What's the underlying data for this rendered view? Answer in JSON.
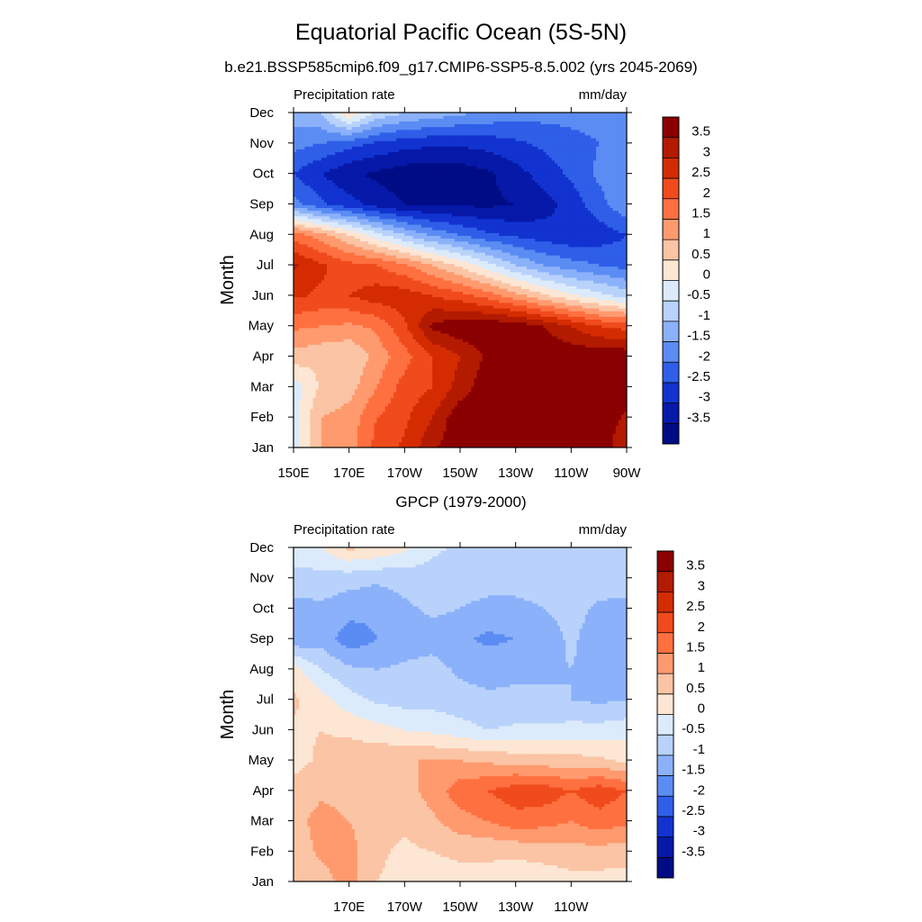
{
  "figure": {
    "title": "Equatorial Pacific Ocean (5S-5N)",
    "subtitle": "b.e21.BSSP585cmip6.f09_g17.CMIP6-SSP5-8.5.002 (yrs 2045-2069)",
    "panel2_title": "GPCP (1979-2000)"
  },
  "colorbar": {
    "levels": [
      "3.5",
      "3",
      "2.5",
      "2",
      "1.5",
      "1",
      "0.5",
      "0",
      "-0.5",
      "-1",
      "-1.5",
      "-2",
      "-2.5",
      "-3",
      "-3.5"
    ],
    "colors": [
      "#8b0000",
      "#b31b00",
      "#d42c00",
      "#f04b1d",
      "#ff7040",
      "#ff9a6e",
      "#fbc4a4",
      "#fde6d4",
      "#dcebfb",
      "#b8d2fb",
      "#8bb1fa",
      "#5b8cf3",
      "#2f5fe8",
      "#1233d0",
      "#0619a8",
      "#000c85"
    ]
  },
  "chart_data": [
    {
      "type": "heatmap",
      "title": "b.e21.BSSP585cmip6.f09_g17.CMIP6-SSP5-8.5.002 (yrs 2045-2069)",
      "left_label": "Precipitation rate",
      "right_label": "mm/day",
      "xlabel": "",
      "ylabel": "Month",
      "xticks": [
        "150E",
        "170E",
        "170W",
        "150W",
        "130W",
        "110W",
        "90W"
      ],
      "yticks": [
        "Jan",
        "Feb",
        "Mar",
        "Apr",
        "May",
        "Jun",
        "Jul",
        "Aug",
        "Sep",
        "Oct",
        "Nov",
        "Dec"
      ],
      "xlim": [
        150,
        270
      ],
      "x": [
        150,
        160,
        170,
        180,
        190,
        200,
        210,
        220,
        230,
        240,
        250,
        260,
        270
      ],
      "values": [
        [
          -0.2,
          1.0,
          1.2,
          2.2,
          2.6,
          3.4,
          3.9,
          3.9,
          3.9,
          3.9,
          3.9,
          3.9,
          3.0
        ],
        [
          -0.2,
          1.0,
          1.2,
          2.0,
          2.4,
          3.0,
          3.9,
          3.9,
          3.9,
          3.9,
          3.9,
          3.9,
          3.4
        ],
        [
          -0.3,
          0.6,
          0.8,
          1.5,
          2.2,
          2.5,
          3.2,
          3.9,
          3.9,
          3.9,
          3.9,
          3.9,
          3.9
        ],
        [
          0.8,
          0.6,
          0.5,
          1.2,
          1.8,
          2.5,
          3.0,
          3.6,
          3.9,
          3.9,
          3.9,
          3.9,
          3.9
        ],
        [
          1.6,
          1.5,
          1.4,
          1.6,
          2.4,
          3.6,
          3.9,
          3.9,
          3.9,
          3.5,
          3.0,
          2.5,
          2.3
        ],
        [
          2.6,
          2.4,
          2.5,
          2.8,
          2.8,
          2.5,
          2.2,
          1.8,
          1.2,
          0.6,
          0.1,
          -0.3,
          -0.7
        ],
        [
          3.1,
          2.6,
          2.2,
          2.0,
          1.6,
          1.0,
          0.4,
          -0.3,
          -1.0,
          -1.5,
          -1.8,
          -2.0,
          -2.2
        ],
        [
          1.8,
          1.2,
          0.5,
          -0.3,
          -1.0,
          -1.6,
          -2.0,
          -2.4,
          -2.6,
          -2.8,
          -2.9,
          -2.8,
          -2.5
        ],
        [
          -1.8,
          -2.4,
          -2.8,
          -3.2,
          -3.5,
          -3.6,
          -3.6,
          -3.6,
          -3.5,
          -3.2,
          -2.8,
          -2.2,
          -1.6
        ],
        [
          -2.5,
          -3.0,
          -3.4,
          -3.6,
          -3.8,
          -3.8,
          -3.8,
          -3.6,
          -3.2,
          -2.8,
          -2.4,
          -1.9,
          -1.5
        ],
        [
          -1.8,
          -2.0,
          -2.3,
          -2.6,
          -2.8,
          -2.9,
          -2.9,
          -2.8,
          -2.6,
          -2.4,
          -2.2,
          -2.0,
          -1.8
        ],
        [
          -1.2,
          -1.0,
          0.5,
          -0.6,
          -1.0,
          -1.2,
          -1.4,
          -1.6,
          -1.8,
          -1.8,
          -1.8,
          -1.8,
          -1.7
        ]
      ]
    },
    {
      "type": "heatmap",
      "title": "GPCP (1979-2000)",
      "left_label": "Precipitation rate",
      "right_label": "mm/day",
      "xlabel": "",
      "ylabel": "Month",
      "xticks": [
        "170E",
        "170W",
        "150W",
        "130W",
        "110W"
      ],
      "yticks": [
        "Jan",
        "Feb",
        "Mar",
        "Apr",
        "May",
        "Jun",
        "Jul",
        "Aug",
        "Sep",
        "Oct",
        "Nov",
        "Dec"
      ],
      "xlim": [
        150,
        270
      ],
      "x": [
        150,
        160,
        170,
        180,
        190,
        200,
        210,
        220,
        230,
        240,
        250,
        260,
        270
      ],
      "values": [
        [
          0.6,
          0.8,
          1.2,
          0.5,
          0.3,
          0.3,
          0.3,
          0.3,
          0.2,
          0.2,
          0.3,
          0.3,
          0.3
        ],
        [
          0.7,
          1.1,
          1.2,
          0.6,
          0.4,
          0.5,
          0.6,
          0.6,
          0.6,
          0.7,
          0.8,
          0.8,
          0.7
        ],
        [
          0.8,
          1.2,
          1.0,
          0.7,
          0.6,
          0.9,
          1.3,
          1.5,
          1.8,
          1.7,
          1.5,
          1.8,
          1.6
        ],
        [
          0.7,
          0.9,
          0.8,
          0.7,
          0.8,
          1.2,
          1.8,
          2.0,
          2.3,
          2.3,
          2.0,
          2.3,
          2.0
        ],
        [
          0.3,
          0.6,
          0.8,
          0.9,
          1.0,
          1.0,
          1.0,
          0.9,
          0.8,
          0.7,
          0.7,
          0.6,
          0.4
        ],
        [
          0.4,
          0.5,
          0.4,
          0.2,
          0.0,
          -0.1,
          -0.3,
          -0.5,
          -0.4,
          -0.4,
          -0.3,
          -0.3,
          -0.2
        ],
        [
          0.6,
          0.2,
          -0.3,
          -0.6,
          -0.7,
          -0.7,
          -0.8,
          -0.9,
          -0.9,
          -0.9,
          -1.0,
          -1.1,
          -1.0
        ],
        [
          0.2,
          -0.5,
          -0.9,
          -1.0,
          -0.9,
          -0.8,
          -1.1,
          -1.2,
          -1.1,
          -1.1,
          -1.0,
          -1.2,
          -1.1
        ],
        [
          -1.4,
          -1.2,
          -1.8,
          -1.5,
          -1.3,
          -1.2,
          -1.4,
          -1.6,
          -1.5,
          -1.3,
          -0.9,
          -1.3,
          -1.2
        ],
        [
          -1.2,
          -1.1,
          -1.3,
          -1.4,
          -1.1,
          -0.9,
          -1.0,
          -1.2,
          -1.2,
          -1.0,
          -0.8,
          -1.1,
          -1.2
        ],
        [
          -0.7,
          -0.7,
          -0.8,
          -0.9,
          -0.8,
          -0.7,
          -0.7,
          -0.7,
          -0.7,
          -0.7,
          -0.6,
          -0.7,
          -0.7
        ],
        [
          -0.2,
          0.0,
          0.6,
          0.4,
          0.1,
          -0.4,
          -0.6,
          -0.6,
          -0.6,
          -0.6,
          -0.6,
          -0.6,
          -0.6
        ]
      ]
    }
  ]
}
